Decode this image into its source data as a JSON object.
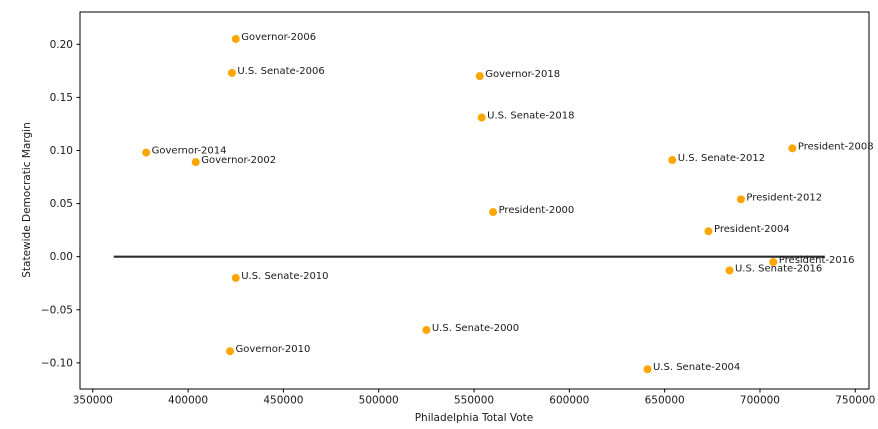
{
  "figure": {
    "background_color": "#ffffff",
    "marker_color": "#FFA500",
    "zero_line_color": "#2b2b2b",
    "spine_color": "#000000",
    "text_color": "#1a1a1a"
  },
  "chart_data": {
    "type": "scatter",
    "title": "",
    "xlabel": "Philadelphia Total Vote",
    "ylabel": "Statewide Democratic Margin",
    "xlim": [
      343300,
      757200
    ],
    "ylim": [
      -0.1246,
      0.2304
    ],
    "grid": false,
    "legend_position": "none",
    "x_ticks": [
      350000,
      400000,
      450000,
      500000,
      550000,
      600000,
      650000,
      700000,
      750000
    ],
    "x_tick_labels": [
      "350000",
      "400000",
      "450000",
      "500000",
      "550000",
      "600000",
      "650000",
      "700000",
      "750000"
    ],
    "y_ticks": [
      0.2,
      0.15,
      0.1,
      0.05,
      0.0,
      -0.05,
      -0.1
    ],
    "y_tick_labels": [
      "0.20",
      "0.15",
      "0.10",
      "0.05",
      "0.00",
      "−0.05",
      "−0.10"
    ],
    "zero_line": {
      "y": 0.0,
      "x_start": 361000,
      "x_end": 734000
    },
    "points": [
      {
        "label": "Governor-2006",
        "x": 425000,
        "y": 0.205
      },
      {
        "label": "U.S. Senate-2006",
        "x": 423000,
        "y": 0.173
      },
      {
        "label": "Governor-2018",
        "x": 553000,
        "y": 0.17
      },
      {
        "label": "U.S. Senate-2018",
        "x": 554000,
        "y": 0.131
      },
      {
        "label": "President-2008",
        "x": 717000,
        "y": 0.102
      },
      {
        "label": "Governor-2014",
        "x": 378000,
        "y": 0.098
      },
      {
        "label": "U.S. Senate-2012",
        "x": 654000,
        "y": 0.091
      },
      {
        "label": "Governor-2002",
        "x": 404000,
        "y": 0.089
      },
      {
        "label": "President-2012",
        "x": 690000,
        "y": 0.054
      },
      {
        "label": "President-2000",
        "x": 560000,
        "y": 0.042
      },
      {
        "label": "President-2004",
        "x": 673000,
        "y": 0.024
      },
      {
        "label": "President-2016",
        "x": 707000,
        "y": -0.005
      },
      {
        "label": "U.S. Senate-2016",
        "x": 684000,
        "y": -0.013
      },
      {
        "label": "U.S. Senate-2010",
        "x": 425000,
        "y": -0.02
      },
      {
        "label": "U.S. Senate-2000",
        "x": 525000,
        "y": -0.069
      },
      {
        "label": "Governor-2010",
        "x": 422000,
        "y": -0.089
      },
      {
        "label": "U.S. Senate-2004",
        "x": 641000,
        "y": -0.106
      }
    ]
  }
}
